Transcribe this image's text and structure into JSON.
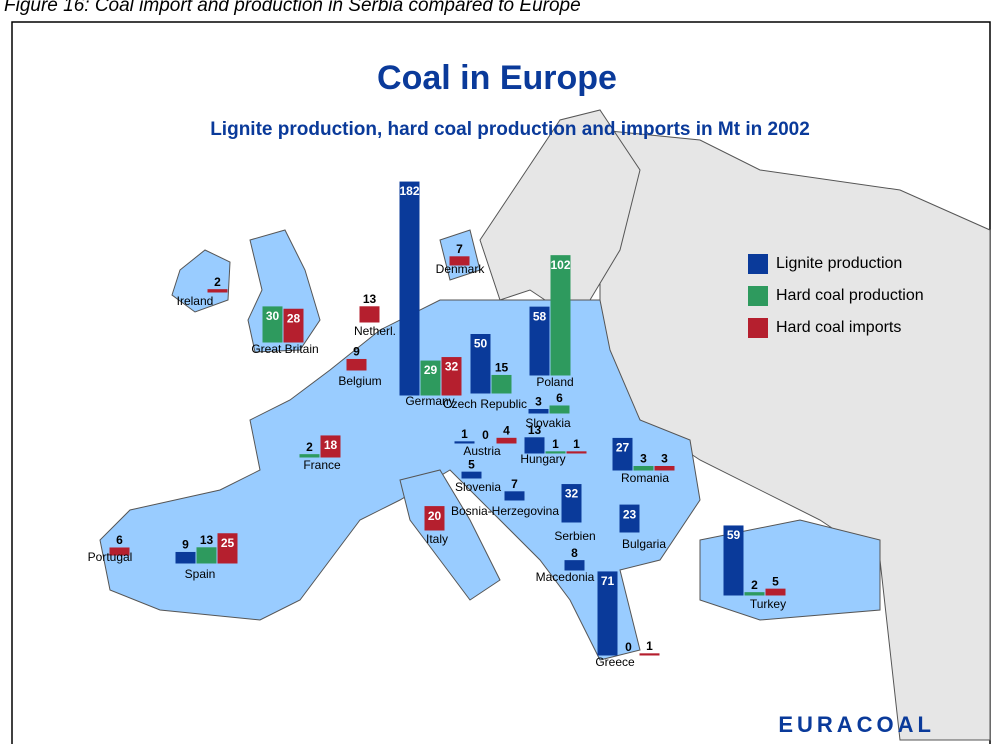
{
  "caption": "Figure 16: Coal import and production in Serbia compared to Europe",
  "title": "Coal in Europe",
  "subtitle": "Lignite production, hard coal production and imports in Mt in 2002",
  "legend": [
    {
      "key": "lignite",
      "name": "Lignite production",
      "color": "#0a3a9a"
    },
    {
      "key": "hard_coal",
      "name": "Hard coal production",
      "color": "#2e9a5e"
    },
    {
      "key": "imports",
      "name": "Hard coal imports",
      "color": "#b51f2e"
    }
  ],
  "countries": [
    {
      "name": "Ireland",
      "imports": 2
    },
    {
      "name": "Great Britain",
      "hard_coal": 30,
      "imports": 28
    },
    {
      "name": "Netherl.",
      "imports": 13
    },
    {
      "name": "Belgium",
      "imports": 9
    },
    {
      "name": "Denmark",
      "imports": 7
    },
    {
      "name": "Germany",
      "lignite": 182,
      "hard_coal": 29,
      "imports": 32
    },
    {
      "name": "Poland",
      "lignite": 58,
      "hard_coal": 102
    },
    {
      "name": "Czech Republic",
      "lignite": 50,
      "hard_coal": 15
    },
    {
      "name": "Slovakia",
      "lignite": 3,
      "hard_coal": 6
    },
    {
      "name": "Austria",
      "lignite": 1,
      "hard_coal": 0,
      "imports": 4
    },
    {
      "name": "Hungary",
      "lignite": 13,
      "hard_coal": 1,
      "imports": 1
    },
    {
      "name": "France",
      "hard_coal": 2,
      "imports": 18
    },
    {
      "name": "Slovenia",
      "lignite": 5
    },
    {
      "name": "Bosnia-Herzegovina",
      "lignite": 7
    },
    {
      "name": "Serbien",
      "lignite": 32
    },
    {
      "name": "Romania",
      "lignite": 27,
      "hard_coal": 3,
      "imports": 3
    },
    {
      "name": "Bulgaria",
      "lignite": 23
    },
    {
      "name": "Macedonia",
      "lignite": 8
    },
    {
      "name": "Greece",
      "lignite": 71,
      "hard_coal": 0,
      "imports": 1
    },
    {
      "name": "Turkey",
      "lignite": 59,
      "hard_coal": 2,
      "imports": 5
    },
    {
      "name": "Italy",
      "imports": 20
    },
    {
      "name": "Spain",
      "lignite": 9,
      "hard_coal": 13,
      "imports": 25
    },
    {
      "name": "Portugal",
      "imports": 6
    }
  ],
  "logo": "EURACOAL"
}
